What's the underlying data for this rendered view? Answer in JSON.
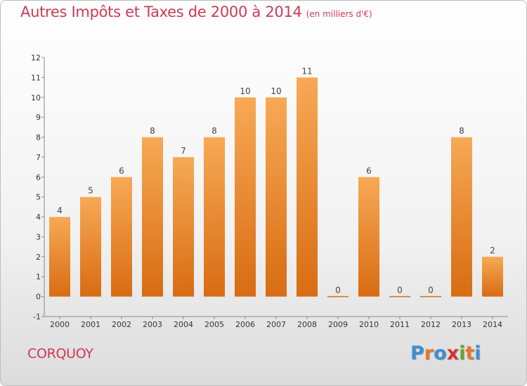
{
  "header": {
    "title": "Autres Impôts et Taxes de 2000 à 2014",
    "unit": "(en milliers d'€)"
  },
  "footer": {
    "commune": "CORQUOY",
    "logo_text": "Proxiti"
  },
  "colors": {
    "title": "#cc3a55",
    "bar_top": "#f7a955",
    "bar_bottom": "#d86c12",
    "logo": [
      "#3a8fd6",
      "#e2782a",
      "#3a8fd6",
      "#d6322e",
      "#58a83a",
      "#e2782a",
      "#3a8fd6"
    ]
  },
  "chart_data": {
    "type": "bar",
    "title": "Autres Impôts et Taxes de 2000 à 2014",
    "subtitle": "(en milliers d'€)",
    "categories": [
      "2000",
      "2001",
      "2002",
      "2003",
      "2004",
      "2005",
      "2006",
      "2007",
      "2008",
      "2009",
      "2010",
      "2011",
      "2012",
      "2013",
      "2014"
    ],
    "values": [
      4,
      5,
      6,
      8,
      7,
      8,
      10,
      10,
      11,
      0,
      6,
      0,
      0,
      8,
      2
    ],
    "data_labels": [
      "4",
      "5",
      "6",
      "8",
      "7",
      "8",
      "10",
      "10",
      "11",
      "0",
      "6",
      "0",
      "0",
      "8",
      "2"
    ],
    "ylim": [
      -1,
      12
    ],
    "yticks": [
      -1,
      0,
      1,
      2,
      3,
      4,
      5,
      6,
      7,
      8,
      9,
      10,
      11,
      12
    ],
    "ytick_labels": [
      "-1",
      "0",
      "1",
      "2",
      "3",
      "4",
      "5",
      "6",
      "7",
      "8",
      "9",
      "10",
      "11",
      "12"
    ],
    "xlabel": "",
    "ylabel": "",
    "grid": false,
    "legend": "none"
  }
}
